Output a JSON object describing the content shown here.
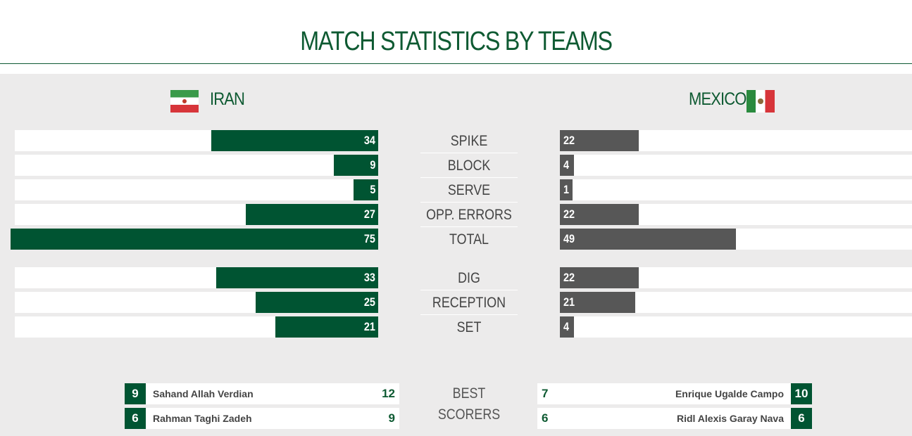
{
  "title": "MATCH STATISTICS BY TEAMS",
  "teams": {
    "left": "IRAN",
    "right": "MEXICO"
  },
  "flags": {
    "left": "iran-flag",
    "right": "mexico-flag"
  },
  "colors": {
    "left_bar": "#005432",
    "right_bar": "#575757",
    "accent": "#0e5a32"
  },
  "chart_data": {
    "type": "bar",
    "orientation": "horizontal-mirrored",
    "categories": [
      "SPIKE",
      "BLOCK",
      "SERVE",
      "OPP. ERRORS",
      "TOTAL",
      "DIG",
      "RECEPTION",
      "SET"
    ],
    "series": [
      {
        "name": "IRAN",
        "values": [
          34,
          9,
          5,
          27,
          75,
          33,
          25,
          21
        ]
      },
      {
        "name": "MEXICO",
        "values": [
          22,
          4,
          1,
          22,
          49,
          22,
          21,
          4
        ]
      }
    ],
    "xlim": [
      0,
      100
    ]
  },
  "best_scorers": {
    "label": "BEST SCORERS",
    "left": [
      {
        "number": "9",
        "name": "Sahand Allah Verdian",
        "points": "12"
      },
      {
        "number": "6",
        "name": "Rahman Taghi Zadeh",
        "points": "9"
      }
    ],
    "right": [
      {
        "number": "10",
        "name": "Enrique Ugalde Campo",
        "points": "7"
      },
      {
        "number": "6",
        "name": "Ridl Alexis Garay Nava",
        "points": "6"
      }
    ]
  }
}
